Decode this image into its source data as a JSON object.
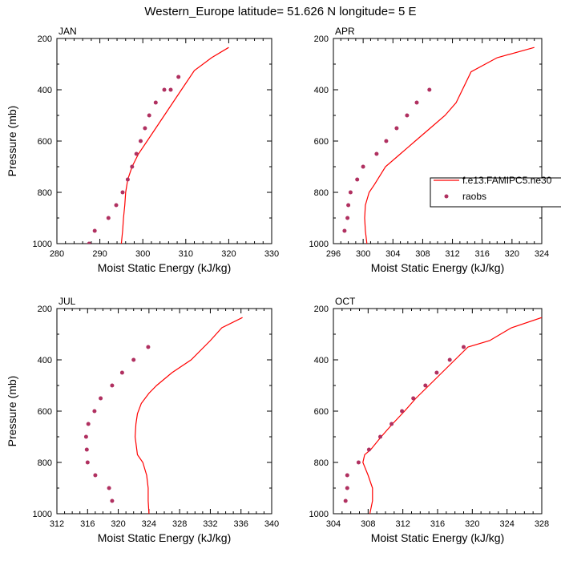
{
  "title": "Western_Europe  latitude= 51.626 N longitude= 5 E",
  "colors": {
    "model": "#ff0000",
    "obs": "#b03060",
    "axis": "#000000"
  },
  "legend": {
    "placement": "right",
    "model_label": "f.e13.FAMIPC5.ne30",
    "obs_label": "raobs"
  },
  "chart_data": [
    {
      "type": "line",
      "panel": "JAN",
      "xlabel": "Moist Static Energy (kJ/kg)",
      "ylabel": "Pressure (mb)",
      "xlim": [
        280,
        330
      ],
      "xticks": [
        280,
        290,
        300,
        310,
        320,
        330
      ],
      "ylim": [
        1000,
        200
      ],
      "yticks": [
        200,
        400,
        600,
        800,
        1000
      ],
      "series": [
        {
          "name": "f.e13.FAMIPC5.ne30",
          "style": "line",
          "x": [
            295.0,
            295.3,
            295.5,
            295.8,
            296.0,
            296.5,
            297.5,
            299.0,
            301.0,
            303.0,
            305.0,
            307.0,
            309.0,
            312.0,
            316.0,
            320.0
          ],
          "y": [
            1000,
            950,
            900,
            850,
            800,
            750,
            700,
            650,
            600,
            550,
            500,
            450,
            400,
            325,
            275,
            235
          ]
        },
        {
          "name": "raobs",
          "style": "marker",
          "x": [
            287.5,
            288.8,
            292.0,
            293.8,
            295.3,
            296.5,
            297.5,
            298.5,
            299.5,
            300.5,
            301.5,
            303.0,
            305.0,
            306.5,
            308.3
          ],
          "y": [
            1000,
            950,
            900,
            850,
            800,
            750,
            700,
            650,
            600,
            550,
            500,
            450,
            400,
            400,
            350
          ]
        }
      ]
    },
    {
      "type": "line",
      "panel": "APR",
      "xlabel": "Moist Static Energy (kJ/kg)",
      "ylabel": "",
      "xlim": [
        296,
        324
      ],
      "xticks": [
        296,
        300,
        304,
        308,
        312,
        316,
        320,
        324
      ],
      "ylim": [
        1000,
        200
      ],
      "yticks": [
        200,
        400,
        600,
        800,
        1000
      ],
      "series": [
        {
          "name": "f.e13.FAMIPC5.ne30",
          "style": "line",
          "x": [
            300.5,
            300.3,
            300.2,
            300.3,
            300.8,
            301.5,
            303.0,
            305.0,
            307.0,
            309.0,
            311.0,
            312.5,
            314.5,
            318.0,
            323.0
          ],
          "y": [
            1000,
            950,
            900,
            850,
            800,
            770,
            700,
            650,
            600,
            550,
            500,
            450,
            330,
            275,
            235
          ]
        },
        {
          "name": "raobs",
          "style": "marker",
          "x": [
            297.5,
            297.9,
            298.0,
            298.3,
            299.2,
            300.0,
            301.8,
            303.1,
            304.5,
            305.9,
            307.2,
            308.9
          ],
          "y": [
            950,
            900,
            850,
            800,
            750,
            700,
            650,
            600,
            550,
            500,
            450,
            400
          ]
        }
      ]
    },
    {
      "type": "line",
      "panel": "JUL",
      "xlabel": "Moist Static Energy (kJ/kg)",
      "ylabel": "Pressure (mb)",
      "xlim": [
        312,
        340
      ],
      "xticks": [
        312,
        316,
        320,
        324,
        328,
        332,
        336,
        340
      ],
      "ylim": [
        1000,
        200
      ],
      "yticks": [
        200,
        400,
        600,
        800,
        1000
      ],
      "series": [
        {
          "name": "f.e13.FAMIPC5.ne30",
          "style": "line",
          "x": [
            324.0,
            323.9,
            323.9,
            323.7,
            323.2,
            322.5,
            322.2,
            322.3,
            322.5,
            323.0,
            324.0,
            325.0,
            327.0,
            329.5,
            332.0,
            333.5,
            336.2
          ],
          "y": [
            1000,
            950,
            900,
            850,
            800,
            770,
            700,
            650,
            610,
            570,
            530,
            500,
            450,
            400,
            325,
            275,
            235
          ]
        },
        {
          "name": "raobs",
          "style": "marker",
          "x": [
            319.2,
            318.8,
            317.0,
            316.0,
            315.9,
            315.8,
            316.1,
            316.9,
            317.7,
            319.2,
            320.5,
            322.0,
            323.9
          ],
          "y": [
            950,
            900,
            850,
            800,
            750,
            700,
            650,
            600,
            550,
            500,
            450,
            400,
            350
          ]
        }
      ]
    },
    {
      "type": "line",
      "panel": "OCT",
      "xlabel": "Moist Static Energy (kJ/kg)",
      "ylabel": "",
      "xlim": [
        304,
        328
      ],
      "xticks": [
        304,
        308,
        312,
        316,
        320,
        324,
        328
      ],
      "ylim": [
        1000,
        200
      ],
      "yticks": [
        200,
        400,
        600,
        800,
        1000
      ],
      "series": [
        {
          "name": "f.e13.FAMIPC5.ne30",
          "style": "line",
          "x": [
            308.2,
            308.5,
            308.5,
            308.0,
            307.4,
            307.6,
            308.3,
            309.5,
            310.8,
            312.2,
            313.5,
            315.0,
            316.5,
            318.0,
            319.5,
            322.0,
            324.5,
            328.0
          ],
          "y": [
            1000,
            950,
            900,
            850,
            800,
            770,
            750,
            700,
            650,
            600,
            550,
            500,
            450,
            400,
            350,
            325,
            275,
            235
          ]
        },
        {
          "name": "raobs",
          "style": "marker",
          "x": [
            305.4,
            305.6,
            305.6,
            306.9,
            308.1,
            309.4,
            310.7,
            311.9,
            313.2,
            314.6,
            315.9,
            317.4,
            319.0
          ],
          "y": [
            950,
            900,
            850,
            800,
            750,
            700,
            650,
            600,
            550,
            500,
            450,
            400,
            350
          ]
        }
      ]
    }
  ]
}
